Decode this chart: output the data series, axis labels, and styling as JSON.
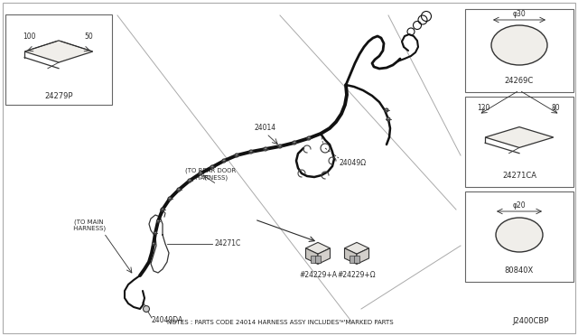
{
  "bg_color": "#ffffff",
  "border_color": "#888888",
  "line_color": "#2a2a2a",
  "thick_line_color": "#111111",
  "note_text": "NOTES : PARTS CODE 24014 HARNESS ASSY INCLUDES'*'MARKED PARTS",
  "ref_code": "J2400CBP",
  "label_24279P": "24279P",
  "dim_100": "100",
  "dim_50": "50",
  "label_24271C": "24271C",
  "label_24014": "24014",
  "label_24049I": "24049Ω",
  "label_24049DA": "24049DA",
  "label_24229A": "#24229+A",
  "label_24229B": "#24229+Ω",
  "label_24269C": "24269C",
  "dim_phi30": "φ30",
  "label_24271CA": "24271CA",
  "dim_120": "120",
  "dim_80": "80",
  "label_80840X": "80840X",
  "dim_phi20": "φ20",
  "to_rear_door": "(TO REAR DOOR\n HARNESS)",
  "to_main": "(TO MAIN\n HARNESS)"
}
